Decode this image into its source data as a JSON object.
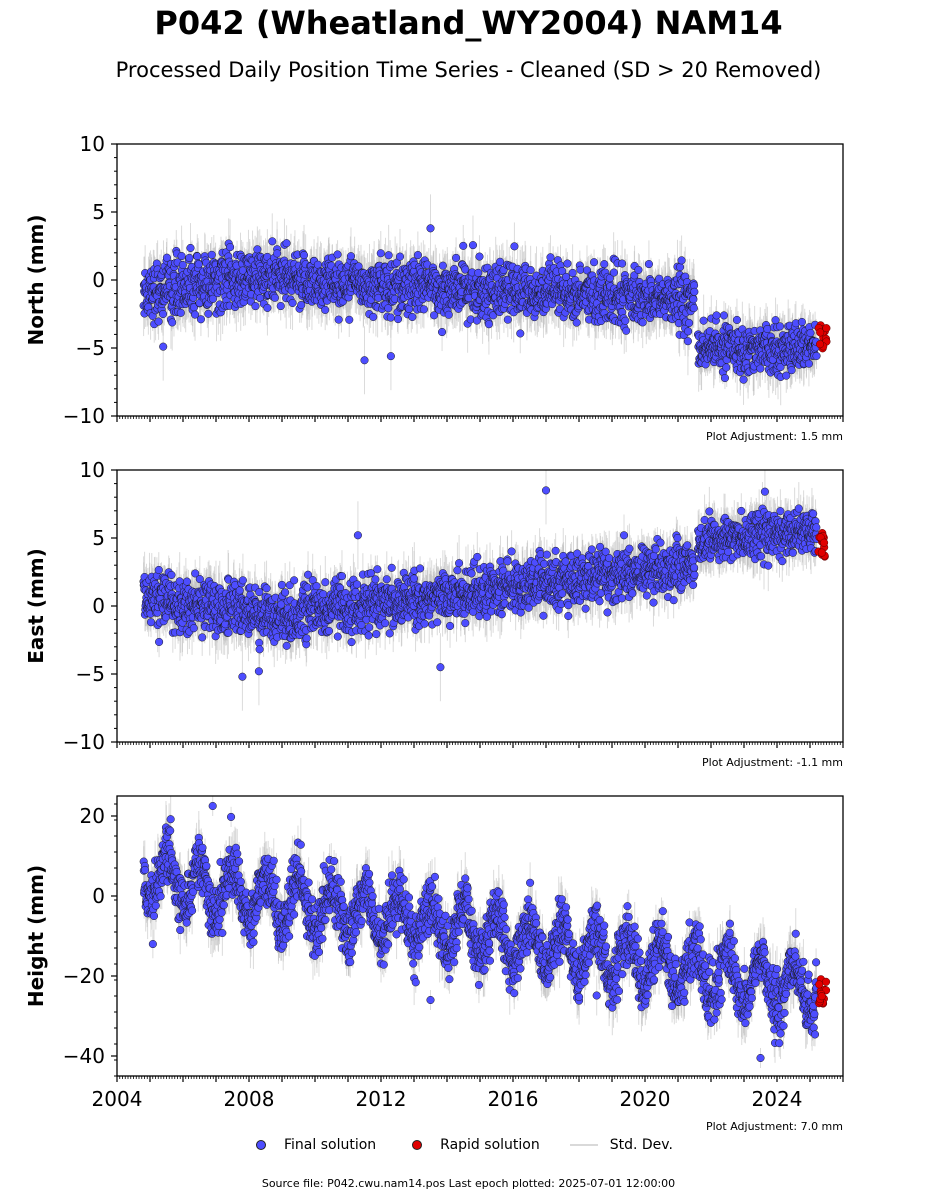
{
  "title": "P042 (Wheatland_WY2004) NAM14",
  "subtitle": "Processed Daily Position Time Series - Cleaned (SD > 20 Removed)",
  "footer": "Source file: P042.cwu.nam14.pos  Last epoch plotted: 2025-07-01 12:00:00",
  "legend": [
    {
      "label": "Final solution",
      "color": "#4d4dff",
      "kind": "dot"
    },
    {
      "label": "Rapid solution",
      "color": "#e00000",
      "kind": "dot"
    },
    {
      "label": "Std. Dev.",
      "color": "#d9d9d9",
      "kind": "line"
    }
  ],
  "colors": {
    "final": "#4d4dff",
    "rapid": "#e00000",
    "errorbar": "#bdbdbd",
    "edge": "#1a1a1a"
  },
  "chart_data": [
    {
      "type": "scatter",
      "panel": "north",
      "ylabel": "North (mm)",
      "ylim": [
        -10,
        10
      ],
      "yticks": [
        10,
        5,
        0,
        -5,
        -10
      ],
      "xlim": [
        2004.0,
        2026.0
      ],
      "adjustment": "Plot Adjustment: 1.5 mm",
      "segments": [
        {
          "x0": 2004.8,
          "x1": 2009.0,
          "y0": -0.8,
          "y1": 0.3,
          "scatter": 1.4,
          "err": 1.6
        },
        {
          "x0": 2009.0,
          "x1": 2021.5,
          "y0": 0.0,
          "y1": -1.5,
          "scatter": 1.3,
          "err": 1.6
        },
        {
          "x0": 2021.6,
          "x1": 2025.2,
          "y0": -5.0,
          "y1": -5.0,
          "scatter": 1.1,
          "err": 1.5
        }
      ],
      "outliers": [
        [
          2011.5,
          -5.9
        ],
        [
          2013.5,
          3.8
        ],
        [
          2012.3,
          -5.6
        ],
        [
          2005.4,
          -4.9
        ],
        [
          2021.3,
          -4.5
        ]
      ],
      "rapid": {
        "x0": 2025.25,
        "x1": 2025.5,
        "y": -4.2,
        "spread": 0.9
      }
    },
    {
      "type": "scatter",
      "panel": "east",
      "ylabel": "East (mm)",
      "ylim": [
        -10,
        10
      ],
      "yticks": [
        10,
        5,
        0,
        -5,
        -10
      ],
      "xlim": [
        2004.0,
        2026.0
      ],
      "adjustment": "Plot Adjustment: -1.1 mm",
      "segments": [
        {
          "x0": 2004.8,
          "x1": 2009.5,
          "y0": 0.5,
          "y1": -0.8,
          "scatter": 1.3,
          "err": 1.6
        },
        {
          "x0": 2009.5,
          "x1": 2021.5,
          "y0": -0.5,
          "y1": 3.0,
          "scatter": 1.2,
          "err": 1.5
        },
        {
          "x0": 2021.6,
          "x1": 2025.2,
          "y0": 4.8,
          "y1": 5.6,
          "scatter": 1.1,
          "err": 1.4
        }
      ],
      "outliers": [
        [
          2017.0,
          8.5
        ],
        [
          2007.8,
          -5.2
        ],
        [
          2011.3,
          5.2
        ],
        [
          2013.8,
          -4.5
        ],
        [
          2008.3,
          -4.8
        ]
      ],
      "rapid": {
        "x0": 2025.25,
        "x1": 2025.5,
        "y": 4.5,
        "spread": 0.9
      }
    },
    {
      "type": "scatter",
      "panel": "height",
      "ylabel": "Height (mm)",
      "ylim": [
        -45,
        25
      ],
      "yticks": [
        20,
        0,
        -20,
        -40
      ],
      "xlim": [
        2004.0,
        2026.0
      ],
      "xticks": [
        2004,
        2008,
        2012,
        2016,
        2020,
        2024
      ],
      "adjustment": "Plot Adjustment: 7.0 mm",
      "segments": [
        {
          "x0": 2004.8,
          "x1": 2025.2,
          "y0": 5.0,
          "y1": -24.0,
          "scatter": 4.5,
          "err": 5.0,
          "seasonal": 6.0
        }
      ],
      "outliers": [
        [
          2006.9,
          22.5
        ],
        [
          2013.5,
          -26.0
        ],
        [
          2023.5,
          -40.5
        ]
      ],
      "rapid": {
        "x0": 2025.25,
        "x1": 2025.5,
        "y": -23.5,
        "spread": 3.5
      }
    }
  ]
}
